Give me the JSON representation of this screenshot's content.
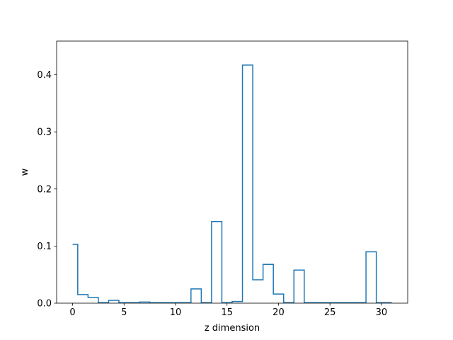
{
  "chart_data": {
    "type": "line",
    "style": "step-post",
    "title": "",
    "xlabel": "z dimension",
    "ylabel": "w",
    "xlim": [
      -1.55,
      32.55
    ],
    "ylim": [
      0,
      0.459
    ],
    "xticks": [
      0,
      5,
      10,
      15,
      20,
      25,
      30
    ],
    "xtick_labels": [
      "0",
      "5",
      "10",
      "15",
      "20",
      "25",
      "30"
    ],
    "yticks": [
      0.0,
      0.1,
      0.2,
      0.3,
      0.4
    ],
    "ytick_labels": [
      "0.0",
      "0.1",
      "0.2",
      "0.3",
      "0.4"
    ],
    "grid": false,
    "legend": "none",
    "line_color": "#1f77b4",
    "x": [
      0,
      0.5,
      1.5,
      2.5,
      3.5,
      4.5,
      5.5,
      6.5,
      7.5,
      8.5,
      9.5,
      10.5,
      11.5,
      12.5,
      13.5,
      14.5,
      15.5,
      16.5,
      17.5,
      18.5,
      19.5,
      20.5,
      21.5,
      22.5,
      23.5,
      24.5,
      25.5,
      26.5,
      27.5,
      28.5,
      29.5,
      31
    ],
    "y": [
      0.103,
      0.015,
      0.01,
      0.001,
      0.005,
      0.001,
      0.001,
      0.002,
      0.001,
      0.001,
      0.001,
      0.001,
      0.025,
      0.001,
      0.143,
      0.001,
      0.003,
      0.417,
      0.041,
      0.068,
      0.016,
      0.001,
      0.058,
      0.001,
      0.001,
      0.001,
      0.001,
      0.001,
      0.001,
      0.09,
      0.001,
      0.001
    ]
  }
}
